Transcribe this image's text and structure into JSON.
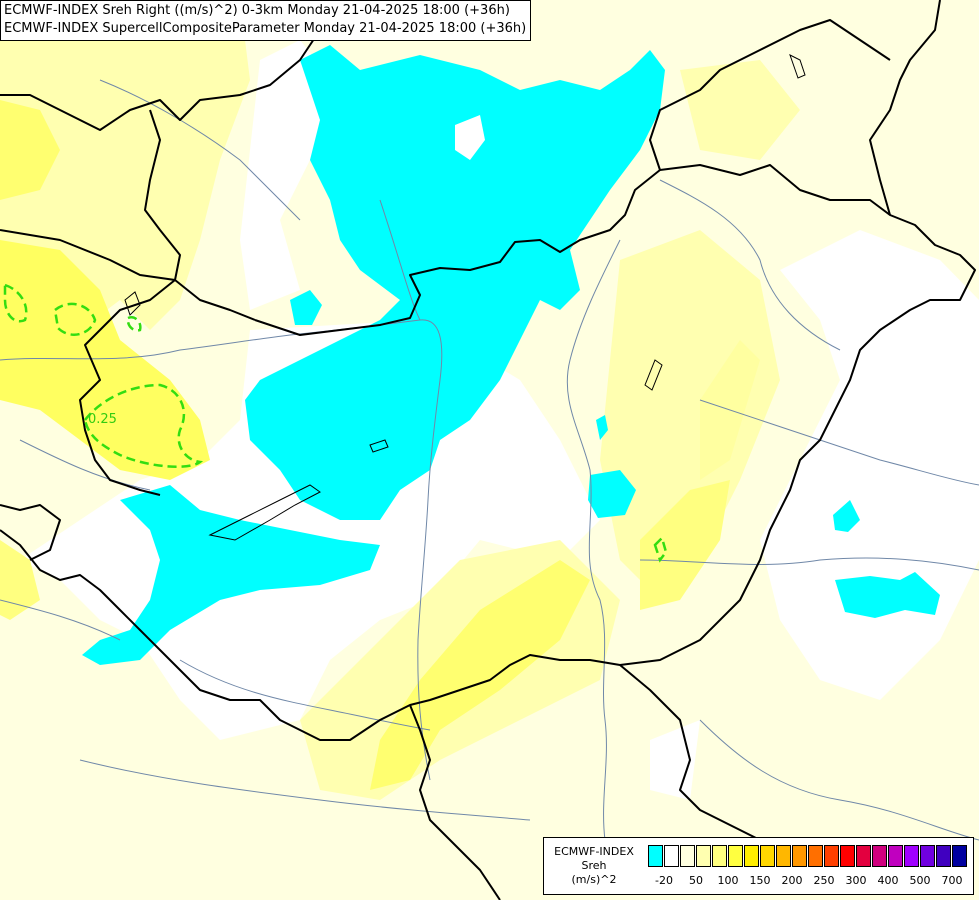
{
  "titles": {
    "line1": "ECMWF-INDEX Sreh Right ((m/s)^2) 0-3km Monday 21-04-2025 18:00 (+36h)",
    "line2": "ECMWF-INDEX SupercellCompositeParameter Monday 21-04-2025 18:00 (+36h)"
  },
  "contour_label": "0.25",
  "legend": {
    "title_line1": "ECMWF-INDEX",
    "title_line2": "Sreh",
    "title_line3": "(m/s)^2",
    "colors": [
      "#00ffff",
      "#ffffff",
      "#ffffe0",
      "#ffffb0",
      "#ffff80",
      "#ffff40",
      "#ffee00",
      "#ffd700",
      "#ffb700",
      "#ff9700",
      "#ff6f00",
      "#ff3f00",
      "#ff0000",
      "#e3003f",
      "#d0007f",
      "#c000bf",
      "#a000ff",
      "#7000e0",
      "#4000c0",
      "#0000a0"
    ],
    "ticks": [
      "-20",
      "50",
      "100",
      "150",
      "200",
      "250",
      "300",
      "400",
      "500",
      "700"
    ]
  },
  "colors": {
    "shear_negative": "#00ffff",
    "shear_low": "#ffffb0",
    "shear_mid": "#ffff60",
    "shear_high": "#ffee00",
    "contour": "#33dd11",
    "border": "#000000",
    "river": "#7088a8"
  }
}
